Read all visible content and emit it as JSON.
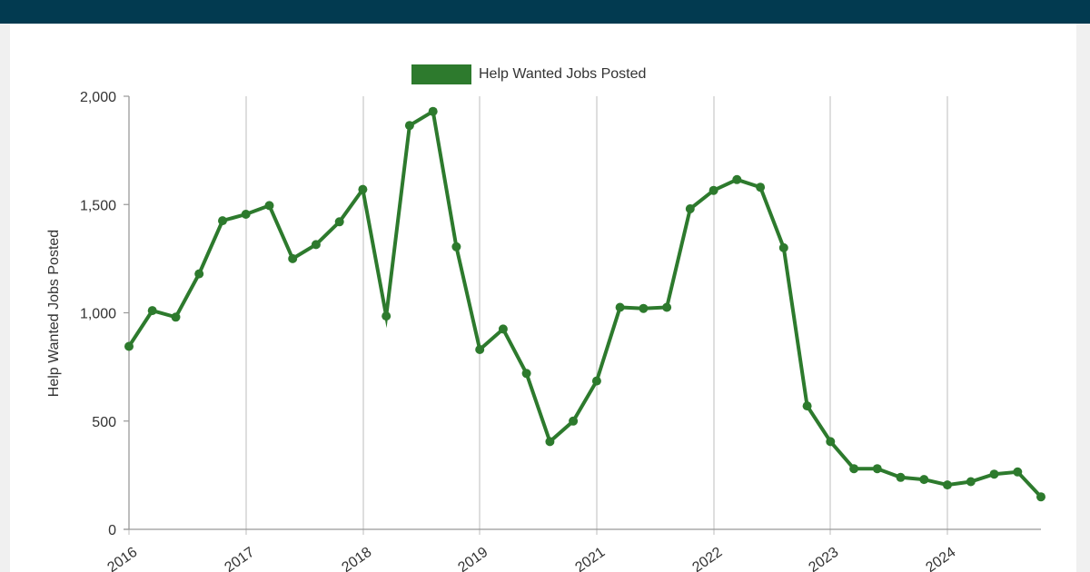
{
  "header": {
    "bar_color": "#023a50"
  },
  "legend": {
    "label": "Help Wanted Jobs Posted",
    "color": "#2d7a2d"
  },
  "chart_data": {
    "type": "line",
    "ylabel": "Help Wanted Jobs Posted",
    "xlabel": "",
    "ylim": [
      0,
      2000
    ],
    "y_ticks": [
      {
        "value": 0,
        "label": "0"
      },
      {
        "value": 500,
        "label": "500"
      },
      {
        "value": 1000,
        "label": "1,000"
      },
      {
        "value": 1500,
        "label": "1,500"
      },
      {
        "value": 2000,
        "label": "2,000"
      }
    ],
    "x_ticks": [
      "2016",
      "2017",
      "2018",
      "2019",
      "2021",
      "2022",
      "2023",
      "2024"
    ],
    "grid": {
      "vertical": true,
      "horizontal": false
    },
    "legend_position": "top",
    "series": [
      {
        "name": "Help Wanted Jobs Posted",
        "color": "#2d7a2d",
        "values": [
          845,
          1010,
          980,
          1180,
          1425,
          1455,
          1495,
          1250,
          1315,
          1420,
          1570,
          985,
          1865,
          1930,
          1305,
          830,
          925,
          720,
          405,
          500,
          685,
          1025,
          1020,
          1025,
          1480,
          1565,
          1615,
          1580,
          1300,
          570,
          405,
          280,
          280,
          240,
          230,
          205,
          220,
          255,
          265,
          150
        ]
      }
    ]
  }
}
